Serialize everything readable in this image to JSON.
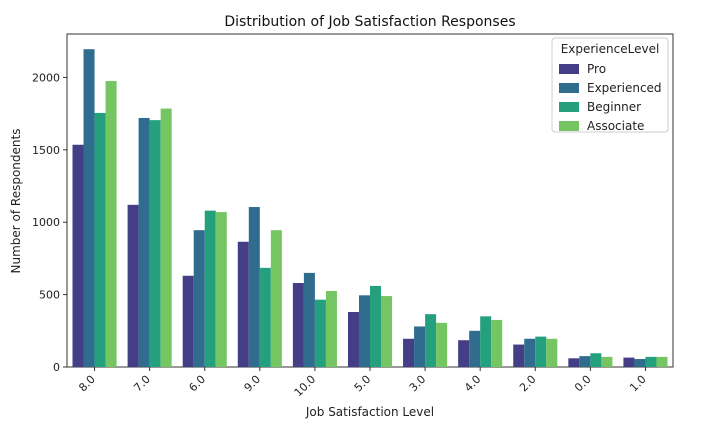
{
  "chart_data": {
    "type": "bar",
    "title": "Distribution of Job Satisfaction Responses",
    "xlabel": "Job Satisfaction Level",
    "ylabel": "Number of Respondents",
    "categories": [
      "8.0",
      "7.0",
      "6.0",
      "9.0",
      "10.0",
      "5.0",
      "3.0",
      "4.0",
      "2.0",
      "0.0",
      "1.0"
    ],
    "ylim": [
      0,
      2300
    ],
    "yticks": [
      0,
      500,
      1000,
      1500,
      2000
    ],
    "legend": {
      "title": "ExperienceLevel",
      "placement": "top-right"
    },
    "series": [
      {
        "name": "Pro",
        "color": "#433e85",
        "values": [
          1535,
          1120,
          630,
          865,
          580,
          380,
          195,
          185,
          155,
          60,
          65
        ]
      },
      {
        "name": "Experienced",
        "color": "#2f6c8e",
        "values": [
          2195,
          1720,
          945,
          1105,
          650,
          495,
          280,
          250,
          195,
          75,
          55
        ]
      },
      {
        "name": "Beginner",
        "color": "#25a07e",
        "values": [
          1755,
          1705,
          1080,
          685,
          465,
          560,
          365,
          350,
          210,
          95,
          70
        ]
      },
      {
        "name": "Associate",
        "color": "#75c663",
        "values": [
          1975,
          1785,
          1070,
          945,
          525,
          490,
          305,
          325,
          195,
          70,
          70
        ]
      }
    ]
  }
}
